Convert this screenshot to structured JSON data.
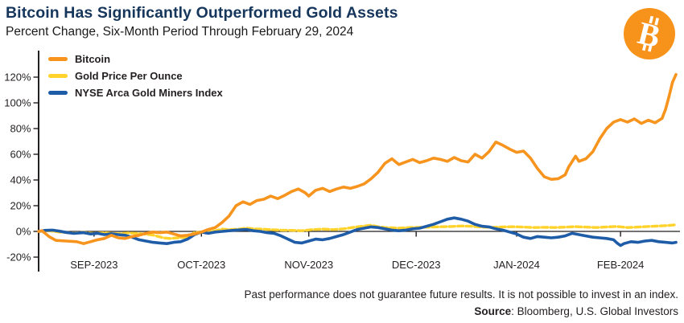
{
  "header": {
    "title": "Bitcoin Has Significantly Outperformed Gold Assets",
    "subtitle": "Percent Change, Six-Month Period Through February 29, 2024"
  },
  "logo": {
    "name": "bitcoin-logo",
    "color": "#F7931A"
  },
  "footer": {
    "disclaimer": "Past performance does not guarantee future results. It is not possible to invest in an index.",
    "source_label": "Source",
    "source_rest": ": Bloomberg, U.S. Global Investors"
  },
  "chart_data": {
    "type": "line",
    "title": "Bitcoin Has Significantly Outperformed Gold Assets",
    "subtitle": "Percent Change, Six-Month Period Through February 29, 2024",
    "xlabel": "",
    "ylabel": "Percent Change",
    "y_suffix": "%",
    "ylim": [
      -20,
      130
    ],
    "y_ticks": [
      120,
      100,
      80,
      60,
      40,
      20,
      0,
      -20
    ],
    "x_range_days": [
      0,
      184
    ],
    "x_tick_days": [
      16,
      47,
      78,
      109,
      138,
      168
    ],
    "x_tick_labels": [
      "SEP-2023",
      "OCT-2023",
      "NOV-2023",
      "DEC-2023",
      "JAN-2024",
      "FEB-2024"
    ],
    "grid": false,
    "legend_position": "top-left",
    "axis_color": "#231F20",
    "series": [
      {
        "name": "Bitcoin",
        "color": "#F7941E",
        "dashed": false,
        "points": [
          [
            0,
            0
          ],
          [
            1,
            0.5
          ],
          [
            3,
            -4
          ],
          [
            5,
            -7
          ],
          [
            8,
            -7.5
          ],
          [
            11,
            -8
          ],
          [
            13,
            -9.5
          ],
          [
            15,
            -8
          ],
          [
            17,
            -6.5
          ],
          [
            19,
            -5.5
          ],
          [
            21,
            -3
          ],
          [
            23,
            -5
          ],
          [
            25,
            -5.5
          ],
          [
            27,
            -4
          ],
          [
            29,
            -3
          ],
          [
            31,
            -1.5
          ],
          [
            33,
            -0.5
          ],
          [
            35,
            -1
          ],
          [
            37,
            -0.5
          ],
          [
            39,
            -2
          ],
          [
            41,
            -3.5
          ],
          [
            43,
            -3
          ],
          [
            45,
            -2
          ],
          [
            47,
            -0.5
          ],
          [
            49,
            1.5
          ],
          [
            51,
            3
          ],
          [
            53,
            7
          ],
          [
            55,
            12
          ],
          [
            57,
            20
          ],
          [
            59,
            23
          ],
          [
            61,
            21
          ],
          [
            63,
            24
          ],
          [
            65,
            25
          ],
          [
            67,
            27.5
          ],
          [
            69,
            25.5
          ],
          [
            71,
            28
          ],
          [
            73,
            31
          ],
          [
            75,
            33
          ],
          [
            77,
            30
          ],
          [
            78,
            27.5
          ],
          [
            80,
            32
          ],
          [
            82,
            33.5
          ],
          [
            84,
            31
          ],
          [
            86,
            33
          ],
          [
            88,
            34.5
          ],
          [
            90,
            33.5
          ],
          [
            92,
            35
          ],
          [
            94,
            37
          ],
          [
            96,
            41
          ],
          [
            98,
            46
          ],
          [
            100,
            53
          ],
          [
            102,
            56.5
          ],
          [
            104,
            52
          ],
          [
            106,
            54
          ],
          [
            108,
            56
          ],
          [
            110,
            53.5
          ],
          [
            112,
            55
          ],
          [
            114,
            57
          ],
          [
            116,
            56
          ],
          [
            118,
            54.5
          ],
          [
            120,
            57.5
          ],
          [
            122,
            55
          ],
          [
            124,
            54
          ],
          [
            126,
            60
          ],
          [
            128,
            57
          ],
          [
            130,
            62
          ],
          [
            132,
            69.5
          ],
          [
            134,
            67
          ],
          [
            136,
            64
          ],
          [
            138,
            61.5
          ],
          [
            140,
            62.5
          ],
          [
            142,
            57
          ],
          [
            144,
            49
          ],
          [
            146,
            42.5
          ],
          [
            148,
            40.5
          ],
          [
            150,
            41
          ],
          [
            152,
            44
          ],
          [
            153,
            50
          ],
          [
            155,
            58.5
          ],
          [
            156,
            54.5
          ],
          [
            158,
            56.5
          ],
          [
            160,
            62
          ],
          [
            162,
            72
          ],
          [
            164,
            80
          ],
          [
            166,
            85
          ],
          [
            168,
            87
          ],
          [
            170,
            85
          ],
          [
            172,
            87.5
          ],
          [
            174,
            84
          ],
          [
            176,
            86.5
          ],
          [
            178,
            84.5
          ],
          [
            180,
            88
          ],
          [
            181,
            95
          ],
          [
            182,
            105
          ],
          [
            183,
            116
          ],
          [
            184,
            122
          ]
        ]
      },
      {
        "name": "Gold Price Per Ounce",
        "color": "#FFD32B",
        "dashed": true,
        "points": [
          [
            0,
            0
          ],
          [
            3,
            0.5
          ],
          [
            6,
            -0.5
          ],
          [
            10,
            -1.2
          ],
          [
            13,
            -0.8
          ],
          [
            16,
            -1.5
          ],
          [
            19,
            -1
          ],
          [
            23,
            -1.8
          ],
          [
            26,
            -1.2
          ],
          [
            29,
            -1.6
          ],
          [
            33,
            -2.8
          ],
          [
            36,
            -5
          ],
          [
            38,
            -5.5
          ],
          [
            40,
            -5
          ],
          [
            43,
            -4.5
          ],
          [
            45,
            -0.8
          ],
          [
            48,
            -0.5
          ],
          [
            51,
            0.5
          ],
          [
            53,
            1.8
          ],
          [
            55,
            1.4
          ],
          [
            58,
            1.8
          ],
          [
            60,
            2.6
          ],
          [
            62,
            2
          ],
          [
            64,
            1.8
          ],
          [
            67,
            1.4
          ],
          [
            70,
            1
          ],
          [
            73,
            0.8
          ],
          [
            76,
            0.5
          ],
          [
            79,
            1.4
          ],
          [
            82,
            1.8
          ],
          [
            85,
            1.4
          ],
          [
            88,
            2
          ],
          [
            91,
            3.2
          ],
          [
            94,
            4.2
          ],
          [
            96,
            4.8
          ],
          [
            98,
            3.6
          ],
          [
            100,
            3
          ],
          [
            102,
            2.8
          ],
          [
            104,
            2.5
          ],
          [
            107,
            3
          ],
          [
            110,
            3.2
          ],
          [
            113,
            3.4
          ],
          [
            116,
            3.6
          ],
          [
            119,
            3.8
          ],
          [
            122,
            4.2
          ],
          [
            125,
            4
          ],
          [
            128,
            3.4
          ],
          [
            131,
            3.2
          ],
          [
            134,
            3.5
          ],
          [
            137,
            3.6
          ],
          [
            140,
            3.4
          ],
          [
            143,
            3
          ],
          [
            146,
            3.2
          ],
          [
            149,
            3
          ],
          [
            152,
            3.3
          ],
          [
            155,
            3.7
          ],
          [
            158,
            3.4
          ],
          [
            161,
            3
          ],
          [
            164,
            3.5
          ],
          [
            167,
            3.8
          ],
          [
            170,
            3
          ],
          [
            173,
            3.4
          ],
          [
            176,
            3.8
          ],
          [
            179,
            4.2
          ],
          [
            182,
            4.6
          ],
          [
            184,
            5.2
          ]
        ]
      },
      {
        "name": "NYSE Arca Gold Miners Index",
        "color": "#1E5CA8",
        "dashed": false,
        "points": [
          [
            0,
            0
          ],
          [
            2,
            0.8
          ],
          [
            4,
            1
          ],
          [
            6,
            0.2
          ],
          [
            8,
            -0.8
          ],
          [
            10,
            -1.5
          ],
          [
            13,
            -1
          ],
          [
            15,
            -2
          ],
          [
            17,
            -1.5
          ],
          [
            19,
            -2.5
          ],
          [
            21,
            -1.8
          ],
          [
            23,
            -2.5
          ],
          [
            25,
            -3
          ],
          [
            27,
            -4.5
          ],
          [
            29,
            -6.5
          ],
          [
            31,
            -7.5
          ],
          [
            33,
            -8.5
          ],
          [
            35,
            -9
          ],
          [
            37,
            -9.5
          ],
          [
            39,
            -8.5
          ],
          [
            41,
            -8
          ],
          [
            43,
            -6
          ],
          [
            45,
            -2.5
          ],
          [
            47,
            -0.5
          ],
          [
            49,
            -1.5
          ],
          [
            51,
            -0.5
          ],
          [
            53,
            0
          ],
          [
            55,
            0.5
          ],
          [
            57,
            1
          ],
          [
            60,
            1.5
          ],
          [
            62,
            0.5
          ],
          [
            64,
            0
          ],
          [
            66,
            -1
          ],
          [
            68,
            -1.5
          ],
          [
            70,
            -3.5
          ],
          [
            72,
            -6
          ],
          [
            74,
            -8.5
          ],
          [
            76,
            -9
          ],
          [
            78,
            -7.5
          ],
          [
            80,
            -6
          ],
          [
            82,
            -6.5
          ],
          [
            84,
            -5.5
          ],
          [
            86,
            -4
          ],
          [
            88,
            -2.5
          ],
          [
            90,
            -0.5
          ],
          [
            92,
            1.5
          ],
          [
            94,
            2.5
          ],
          [
            96,
            3.5
          ],
          [
            98,
            3
          ],
          [
            100,
            2
          ],
          [
            102,
            1
          ],
          [
            104,
            0.5
          ],
          [
            106,
            1
          ],
          [
            108,
            2
          ],
          [
            110,
            2.5
          ],
          [
            112,
            4
          ],
          [
            114,
            5.5
          ],
          [
            116,
            7.5
          ],
          [
            118,
            9.5
          ],
          [
            120,
            10.5
          ],
          [
            122,
            9.5
          ],
          [
            124,
            8
          ],
          [
            126,
            5.5
          ],
          [
            128,
            4
          ],
          [
            130,
            3.5
          ],
          [
            132,
            2
          ],
          [
            134,
            1
          ],
          [
            136,
            -0.5
          ],
          [
            138,
            -2
          ],
          [
            140,
            -4.5
          ],
          [
            142,
            -5.5
          ],
          [
            144,
            -4
          ],
          [
            146,
            -4.5
          ],
          [
            148,
            -5
          ],
          [
            150,
            -4.5
          ],
          [
            152,
            -3.5
          ],
          [
            154,
            -1.5
          ],
          [
            156,
            -2.5
          ],
          [
            158,
            -3.5
          ],
          [
            160,
            -4.5
          ],
          [
            162,
            -5
          ],
          [
            164,
            -5.5
          ],
          [
            166,
            -6.5
          ],
          [
            167,
            -9
          ],
          [
            168,
            -11
          ],
          [
            169,
            -9.5
          ],
          [
            171,
            -8
          ],
          [
            173,
            -8.5
          ],
          [
            175,
            -7.5
          ],
          [
            177,
            -7
          ],
          [
            179,
            -8
          ],
          [
            181,
            -8.5
          ],
          [
            183,
            -9
          ],
          [
            184,
            -8.5
          ]
        ]
      }
    ]
  }
}
